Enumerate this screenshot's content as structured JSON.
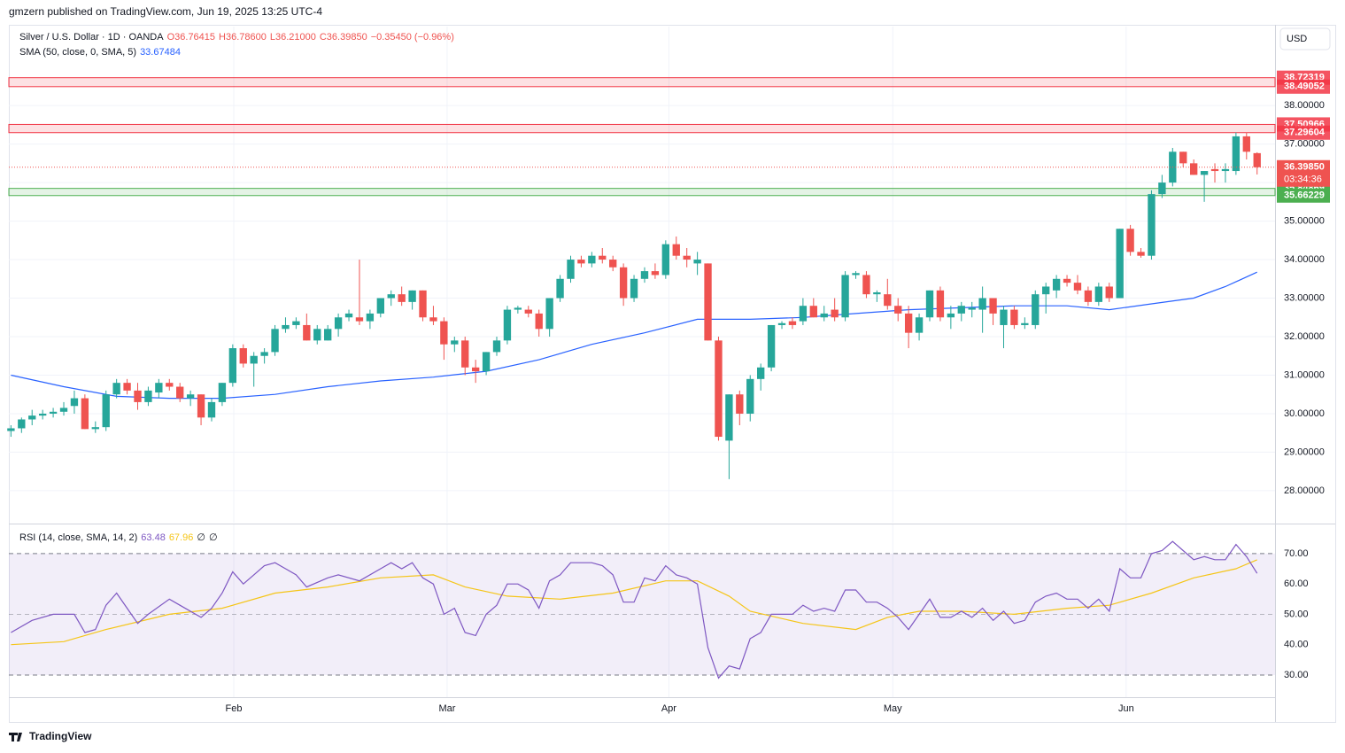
{
  "header": {
    "published": "gmzern published on TradingView.com, Jun 19, 2025 13:25 UTC-4",
    "footer": "TradingView"
  },
  "chart_data": {
    "type": "candlestick",
    "legend": {
      "symbol": "Silver / U.S. Dollar · 1D · OANDA",
      "open": "O36.76415",
      "high": "H36.78600",
      "low": "L36.21000",
      "close": "C36.39850",
      "change": "−0.35450 (−0.96%)"
    },
    "currency": "USD",
    "up_color": "#26a69a",
    "down_color": "#ef5350",
    "ylim": [
      27.17,
      40.05
    ],
    "yticks": [
      {
        "value": 28,
        "label": "28.00000"
      },
      {
        "value": 29,
        "label": "29.00000"
      },
      {
        "value": 30,
        "label": "30.00000"
      },
      {
        "value": 31,
        "label": "31.00000"
      },
      {
        "value": 32,
        "label": "32.00000"
      },
      {
        "value": 33,
        "label": "33.00000"
      },
      {
        "value": 34,
        "label": "34.00000"
      },
      {
        "value": 35,
        "label": "35.00000"
      },
      {
        "value": 36,
        "label": "36.00000"
      },
      {
        "value": 37,
        "label": "37.00000"
      },
      {
        "value": 38,
        "label": "38.00000"
      }
    ],
    "xlim": [
      -0.2,
      119.7
    ],
    "xticks": [
      {
        "value": 21.1,
        "label": "Feb"
      },
      {
        "value": 41.3,
        "label": "Mar"
      },
      {
        "value": 62.3,
        "label": "Apr"
      },
      {
        "value": 83.5,
        "label": "May"
      },
      {
        "value": 105.6,
        "label": "Jun"
      }
    ],
    "grid": true,
    "candles": [
      [
        29.55,
        29.7,
        29.4,
        29.62
      ],
      [
        29.62,
        29.9,
        29.5,
        29.85
      ],
      [
        29.85,
        30.1,
        29.7,
        29.95
      ],
      [
        29.95,
        30.1,
        29.85,
        30.0
      ],
      [
        30.0,
        30.15,
        29.9,
        30.05
      ],
      [
        30.05,
        30.3,
        29.95,
        30.15
      ],
      [
        30.2,
        30.6,
        30.0,
        30.4
      ],
      [
        30.4,
        30.5,
        29.6,
        29.6
      ],
      [
        29.6,
        29.8,
        29.5,
        29.65
      ],
      [
        29.65,
        30.6,
        29.55,
        30.5
      ],
      [
        30.5,
        30.9,
        30.4,
        30.8
      ],
      [
        30.8,
        30.9,
        30.5,
        30.6
      ],
      [
        30.6,
        30.8,
        30.1,
        30.3
      ],
      [
        30.3,
        30.7,
        30.2,
        30.6
      ],
      [
        30.55,
        30.9,
        30.4,
        30.8
      ],
      [
        30.8,
        30.9,
        30.6,
        30.7
      ],
      [
        30.7,
        30.8,
        30.3,
        30.4
      ],
      [
        30.4,
        30.6,
        30.2,
        30.5
      ],
      [
        30.5,
        30.5,
        29.7,
        29.9
      ],
      [
        29.9,
        30.4,
        29.8,
        30.3
      ],
      [
        30.3,
        30.8,
        30.2,
        30.8
      ],
      [
        30.8,
        31.8,
        30.7,
        31.7
      ],
      [
        31.7,
        31.8,
        31.2,
        31.3
      ],
      [
        31.3,
        31.6,
        30.7,
        31.5
      ],
      [
        31.5,
        31.7,
        31.3,
        31.6
      ],
      [
        31.6,
        32.3,
        31.5,
        32.2
      ],
      [
        32.2,
        32.5,
        32.1,
        32.3
      ],
      [
        32.3,
        32.5,
        32.2,
        32.4
      ],
      [
        32.3,
        32.6,
        31.9,
        31.9
      ],
      [
        31.9,
        32.3,
        31.8,
        32.2
      ],
      [
        31.9,
        32.3,
        31.9,
        32.2
      ],
      [
        32.2,
        32.6,
        32.0,
        32.5
      ],
      [
        32.5,
        32.7,
        32.4,
        32.6
      ],
      [
        32.5,
        34.0,
        32.3,
        32.4
      ],
      [
        32.4,
        32.7,
        32.2,
        32.6
      ],
      [
        32.6,
        33.0,
        32.5,
        33.0
      ],
      [
        33.0,
        33.2,
        32.8,
        33.1
      ],
      [
        33.1,
        33.3,
        32.8,
        32.9
      ],
      [
        32.9,
        33.2,
        32.7,
        33.2
      ],
      [
        33.2,
        33.2,
        32.4,
        32.5
      ],
      [
        32.5,
        32.8,
        32.3,
        32.4
      ],
      [
        32.4,
        32.5,
        31.4,
        31.8
      ],
      [
        31.8,
        32.0,
        31.6,
        31.9
      ],
      [
        31.9,
        32.0,
        31.0,
        31.2
      ],
      [
        31.2,
        31.4,
        30.8,
        31.1
      ],
      [
        31.1,
        31.6,
        31.0,
        31.6
      ],
      [
        31.6,
        32.0,
        31.5,
        31.9
      ],
      [
        31.9,
        32.8,
        31.8,
        32.7
      ],
      [
        32.7,
        32.8,
        32.6,
        32.75
      ],
      [
        32.7,
        32.8,
        32.5,
        32.6
      ],
      [
        32.6,
        32.7,
        32.0,
        32.2
      ],
      [
        32.2,
        33.0,
        32.0,
        33.0
      ],
      [
        33.0,
        33.6,
        32.9,
        33.5
      ],
      [
        33.5,
        34.1,
        33.4,
        34.0
      ],
      [
        34.0,
        34.1,
        33.8,
        33.9
      ],
      [
        33.9,
        34.2,
        33.8,
        34.1
      ],
      [
        34.1,
        34.3,
        33.9,
        34.0
      ],
      [
        34.0,
        34.1,
        33.7,
        33.8
      ],
      [
        33.8,
        33.9,
        32.8,
        33.0
      ],
      [
        33.0,
        33.6,
        32.9,
        33.5
      ],
      [
        33.5,
        33.8,
        33.4,
        33.7
      ],
      [
        33.7,
        33.9,
        33.5,
        33.6
      ],
      [
        33.6,
        34.5,
        33.5,
        34.4
      ],
      [
        34.4,
        34.6,
        34.0,
        34.1
      ],
      [
        34.1,
        34.3,
        33.8,
        34.0
      ],
      [
        33.9,
        34.2,
        33.6,
        34.0
      ],
      [
        33.9,
        33.9,
        31.9,
        31.9
      ],
      [
        31.9,
        32.0,
        29.3,
        29.4
      ],
      [
        29.3,
        30.5,
        28.3,
        30.5
      ],
      [
        30.5,
        30.6,
        29.7,
        30.0
      ],
      [
        30.0,
        31.0,
        29.8,
        30.9
      ],
      [
        30.9,
        31.3,
        30.6,
        31.2
      ],
      [
        31.2,
        32.3,
        31.1,
        32.3
      ],
      [
        32.3,
        32.4,
        32.2,
        32.35
      ],
      [
        32.4,
        32.5,
        32.2,
        32.3
      ],
      [
        32.4,
        33.0,
        32.3,
        32.8
      ],
      [
        32.8,
        33.0,
        32.5,
        32.5
      ],
      [
        32.5,
        32.8,
        32.4,
        32.6
      ],
      [
        32.7,
        33.0,
        32.4,
        32.5
      ],
      [
        32.5,
        33.7,
        32.4,
        33.6
      ],
      [
        33.6,
        33.7,
        33.5,
        33.65
      ],
      [
        33.6,
        33.7,
        33.0,
        33.1
      ],
      [
        33.1,
        33.2,
        32.9,
        33.15
      ],
      [
        33.1,
        33.5,
        32.7,
        32.8
      ],
      [
        32.8,
        33.0,
        32.4,
        32.6
      ],
      [
        32.6,
        32.8,
        31.7,
        32.1
      ],
      [
        32.1,
        32.6,
        31.9,
        32.5
      ],
      [
        32.5,
        33.2,
        32.4,
        33.2
      ],
      [
        33.2,
        33.3,
        32.4,
        32.5
      ],
      [
        32.5,
        32.8,
        32.2,
        32.6
      ],
      [
        32.6,
        32.9,
        32.4,
        32.8
      ],
      [
        32.7,
        32.9,
        32.5,
        32.75
      ],
      [
        32.7,
        33.3,
        32.1,
        33.0
      ],
      [
        33.0,
        33.0,
        32.3,
        32.6
      ],
      [
        32.3,
        32.8,
        31.7,
        32.7
      ],
      [
        32.7,
        32.8,
        32.2,
        32.3
      ],
      [
        32.3,
        32.5,
        32.2,
        32.35
      ],
      [
        32.3,
        33.2,
        32.2,
        33.1
      ],
      [
        33.1,
        33.4,
        32.6,
        33.3
      ],
      [
        33.2,
        33.6,
        33.0,
        33.5
      ],
      [
        33.5,
        33.6,
        33.3,
        33.4
      ],
      [
        33.4,
        33.6,
        33.1,
        33.2
      ],
      [
        33.2,
        33.3,
        32.8,
        32.9
      ],
      [
        32.9,
        33.4,
        32.8,
        33.3
      ],
      [
        33.3,
        33.4,
        32.9,
        33.0
      ],
      [
        33.0,
        34.8,
        33.0,
        34.8
      ],
      [
        34.8,
        34.9,
        34.1,
        34.2
      ],
      [
        34.2,
        34.3,
        34.05,
        34.1
      ],
      [
        34.1,
        35.8,
        34.0,
        35.7
      ],
      [
        35.7,
        36.2,
        35.6,
        36.0
      ],
      [
        36.0,
        36.9,
        35.9,
        36.8
      ],
      [
        36.8,
        36.8,
        36.4,
        36.5
      ],
      [
        36.5,
        36.6,
        36.2,
        36.2
      ],
      [
        36.2,
        36.3,
        35.5,
        36.3
      ],
      [
        36.35,
        36.5,
        36.0,
        36.3
      ],
      [
        36.3,
        36.5,
        36.0,
        36.35
      ],
      [
        36.3,
        37.3,
        36.2,
        37.2
      ],
      [
        37.2,
        37.3,
        36.6,
        36.8
      ],
      [
        36.76415,
        36.786,
        36.21,
        36.3985
      ]
    ],
    "sma": {
      "name": "SMA (50, close, 0, SMA, 5)",
      "value_label": "33.67484",
      "color": "#2962ff",
      "x": [
        0,
        5,
        10,
        15,
        20,
        25,
        30,
        35,
        40,
        45,
        50,
        55,
        60,
        65,
        70,
        75,
        80,
        85,
        90,
        95,
        100,
        104,
        108,
        112,
        115,
        118
      ],
      "values": [
        31.0,
        30.7,
        30.45,
        30.4,
        30.4,
        30.5,
        30.7,
        30.85,
        30.95,
        31.1,
        31.4,
        31.8,
        32.1,
        32.45,
        32.45,
        32.5,
        32.6,
        32.7,
        32.75,
        32.8,
        32.8,
        32.7,
        32.85,
        33.0,
        33.3,
        33.67484
      ]
    },
    "zones": [
      {
        "high": 38.72319,
        "low": 38.49052,
        "color": "#f23645"
      },
      {
        "high": 37.50966,
        "low": 37.29604,
        "color": "#f23645"
      },
      {
        "high": 35.84869,
        "low": 35.66229,
        "color": "#4caf50"
      }
    ],
    "current": {
      "value": 36.3985,
      "label": "36.39850",
      "countdown": "03:34:36"
    },
    "rsi": {
      "name": "RSI (14, close, SMA, 14, 2)",
      "value_label": "63.48",
      "sma_label": "67.96",
      "extra": [
        "∅",
        "∅"
      ],
      "color": "#7e57c2",
      "sma_color": "#f5c518",
      "ylim": [
        22.7,
        79.6
      ],
      "yticks": [
        {
          "value": 30,
          "label": "30.00"
        },
        {
          "value": 40,
          "label": "40.00"
        },
        {
          "value": 50,
          "label": "50.00"
        },
        {
          "value": 60,
          "label": "60.00"
        },
        {
          "value": 70,
          "label": "70.00"
        }
      ],
      "band": [
        30,
        70
      ],
      "mid": 50,
      "x": [
        0,
        2,
        4,
        6,
        7,
        8,
        9,
        10,
        11,
        12,
        13,
        15,
        16,
        18,
        19,
        20,
        21,
        22,
        23,
        24,
        25,
        26,
        27,
        28,
        30,
        31,
        33,
        35,
        36,
        37,
        38,
        39,
        40,
        41,
        42,
        43,
        44,
        45,
        46,
        47,
        48,
        49,
        50,
        51,
        52,
        53,
        55,
        56,
        57,
        58,
        59,
        60,
        61,
        62,
        63,
        64,
        65,
        66,
        67,
        68,
        69,
        70,
        71,
        72,
        74,
        75,
        76,
        77,
        78,
        79,
        80,
        81,
        82,
        83,
        84,
        85,
        86,
        87,
        88,
        89,
        90,
        91,
        92,
        93,
        94,
        95,
        96,
        97,
        98,
        99,
        100,
        101,
        102,
        103,
        104,
        105,
        106,
        107,
        108,
        109,
        110,
        111,
        112,
        113,
        114,
        115,
        116,
        117,
        118
      ],
      "values": [
        44,
        48,
        50,
        50,
        44,
        45,
        53,
        57,
        52,
        47,
        50,
        55,
        53,
        49,
        52,
        57,
        64,
        60,
        63,
        66,
        67,
        65,
        63,
        59,
        62,
        63,
        61,
        65,
        67,
        65,
        67,
        62,
        60,
        50,
        52,
        44,
        43,
        50,
        53,
        60,
        60,
        58,
        52,
        61,
        63,
        67,
        67,
        66,
        63,
        54,
        54,
        62,
        61,
        66,
        63,
        62,
        60,
        39,
        29,
        33,
        32,
        42,
        44,
        50,
        50,
        53,
        51,
        52,
        51,
        58,
        58,
        54,
        54,
        52,
        49,
        45,
        50,
        55,
        49,
        49,
        51,
        49,
        52,
        48,
        51,
        47,
        48,
        54,
        56,
        57,
        55,
        55,
        52,
        55,
        51,
        65,
        62,
        62,
        70,
        71,
        74,
        71,
        68,
        69,
        68,
        68,
        73,
        69,
        63.48
      ],
      "sma_x": [
        0,
        5,
        9,
        15,
        20,
        25,
        30,
        35,
        40,
        43,
        47,
        52,
        57,
        62,
        65,
        68,
        70,
        75,
        80,
        83,
        86,
        90,
        95,
        100,
        104,
        108,
        112,
        116,
        118
      ],
      "sma_values": [
        40,
        41,
        45,
        50,
        52,
        57,
        59,
        62,
        63,
        59,
        56,
        55,
        57,
        61,
        61,
        56,
        51,
        47,
        45,
        49,
        51,
        51,
        50,
        52,
        53,
        57,
        62,
        65,
        67.96
      ]
    }
  }
}
